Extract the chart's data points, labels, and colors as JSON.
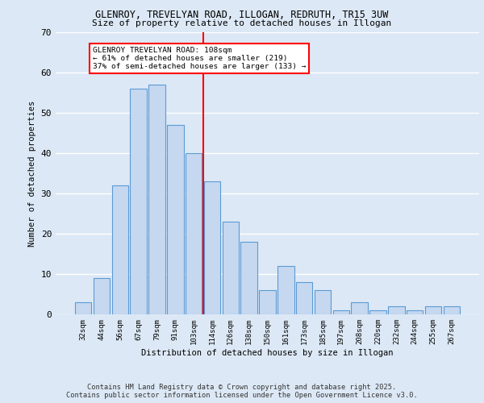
{
  "title1": "GLENROY, TREVELYAN ROAD, ILLOGAN, REDRUTH, TR15 3UW",
  "title2": "Size of property relative to detached houses in Illogan",
  "xlabel": "Distribution of detached houses by size in Illogan",
  "ylabel": "Number of detached properties",
  "categories": [
    "32sqm",
    "44sqm",
    "56sqm",
    "67sqm",
    "79sqm",
    "91sqm",
    "103sqm",
    "114sqm",
    "126sqm",
    "138sqm",
    "150sqm",
    "161sqm",
    "173sqm",
    "185sqm",
    "197sqm",
    "208sqm",
    "220sqm",
    "232sqm",
    "244sqm",
    "255sqm",
    "267sqm"
  ],
  "values": [
    3,
    9,
    32,
    56,
    57,
    47,
    40,
    33,
    23,
    18,
    6,
    12,
    8,
    6,
    1,
    3,
    1,
    2,
    1,
    2,
    2
  ],
  "bar_color": "#c5d8f0",
  "bar_edge_color": "#5b9bd5",
  "vline_index": 7,
  "vline_color": "red",
  "annotation_text": "GLENROY TREVELYAN ROAD: 108sqm\n← 61% of detached houses are smaller (219)\n37% of semi-detached houses are larger (133) →",
  "annotation_box_color": "white",
  "annotation_box_edge": "red",
  "ylim": [
    0,
    70
  ],
  "yticks": [
    0,
    10,
    20,
    30,
    40,
    50,
    60,
    70
  ],
  "background_color": "#dce8f5",
  "grid_color": "white",
  "footer1": "Contains HM Land Registry data © Crown copyright and database right 2025.",
  "footer2": "Contains public sector information licensed under the Open Government Licence v3.0."
}
